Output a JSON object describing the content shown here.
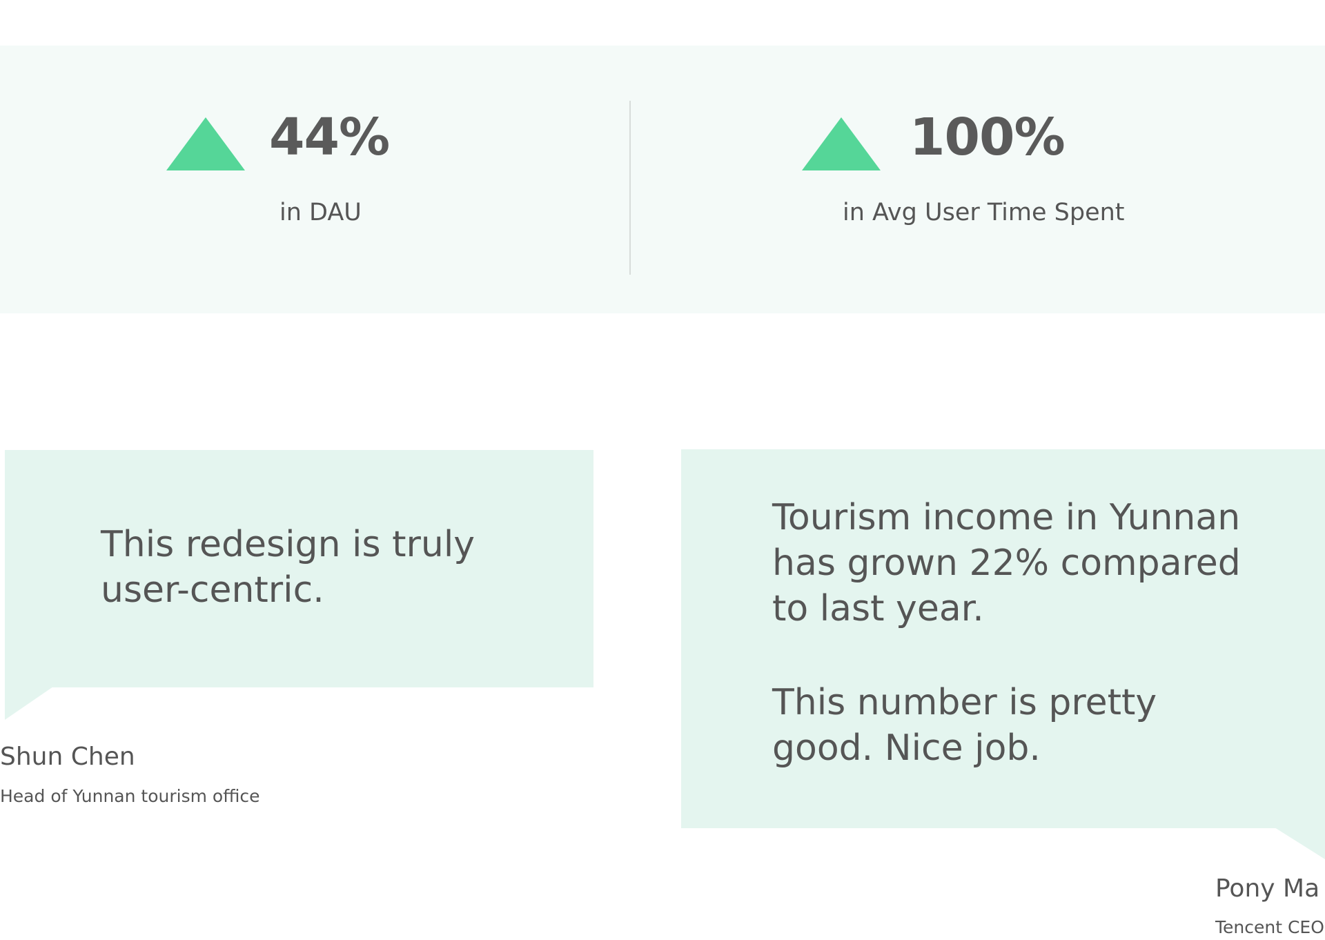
{
  "stats": [
    {
      "icon": "up-triangle-icon",
      "value": "44%",
      "caption": "in DAU"
    },
    {
      "icon": "up-triangle-icon",
      "value": "100%",
      "caption": "in Avg User Time Spent"
    }
  ],
  "colors": {
    "accent_green": "#55d698",
    "band_background": "#f4faf8",
    "bubble_background": "#e4f5ef",
    "text": "#555555"
  },
  "testimonials": [
    {
      "quote": "This redesign is truly\nuser-centric.",
      "name": "Shun Chen",
      "title": "Head of Yunnan tourism office"
    },
    {
      "quote_paragraph_1": "Tourism income in Yunnan\nhas grown 22% compared\nto last year.",
      "quote_paragraph_2": "This number is pretty\ngood. Nice job.",
      "name": "Pony Ma",
      "title": "Tencent CEO"
    }
  ]
}
